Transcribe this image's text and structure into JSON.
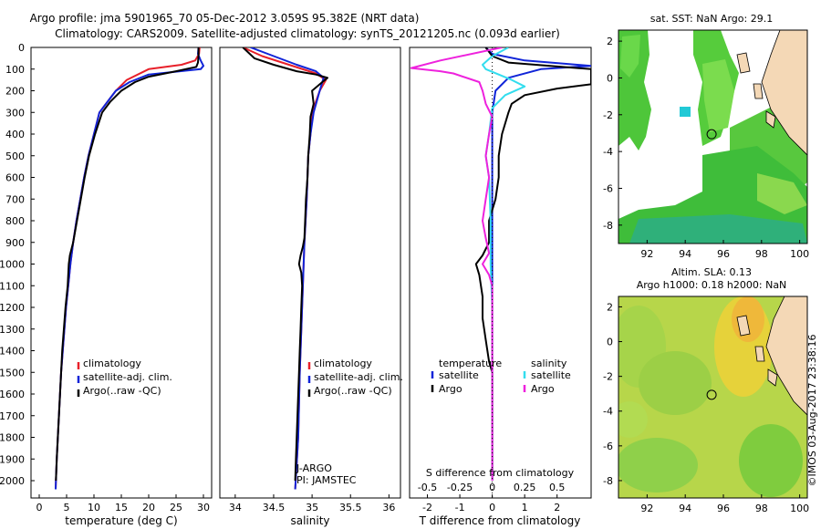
{
  "header": {
    "line1": "Argo profile: jma 5901965_70 05-Dec-2012 3.059S 95.382E (NRT data)",
    "line2": "Climatology: CARS2009. Satellite-adjusted climatology: synTS_20121205.nc (0.093d earlier)"
  },
  "colors": {
    "climatology": "#e8202a",
    "satellite": "#1024d8",
    "argo": "#000000",
    "sal_satellite": "#33ddee",
    "sal_argo": "#ee22dd"
  },
  "depth_axis": {
    "ticks": [
      0,
      100,
      200,
      300,
      400,
      500,
      600,
      700,
      800,
      900,
      1000,
      1100,
      1200,
      1300,
      1400,
      1500,
      1600,
      1700,
      1800,
      1900,
      2000
    ],
    "range": [
      0,
      2080
    ]
  },
  "chart_data": [
    {
      "type": "line",
      "name": "temperature",
      "xlabel": "temperature (deg C)",
      "xlim": [
        -1.5,
        31.5
      ],
      "xticks": [
        0,
        5,
        10,
        15,
        20,
        25,
        30
      ],
      "ylim": [
        2080,
        0
      ],
      "legend": [
        "climatology",
        "satellite-adj. clim.",
        "Argo(..raw -QC)"
      ],
      "series": [
        {
          "name": "climatology",
          "color_key": "climatology",
          "points": [
            [
              29.3,
              0
            ],
            [
              29.2,
              30
            ],
            [
              28.5,
              60
            ],
            [
              26,
              80
            ],
            [
              20,
              100
            ],
            [
              16,
              150
            ],
            [
              14,
              200
            ],
            [
              12.5,
              250
            ],
            [
              11,
              300
            ],
            [
              10,
              400
            ],
            [
              9,
              500
            ],
            [
              8.2,
              600
            ],
            [
              7.5,
              700
            ],
            [
              6.8,
              800
            ],
            [
              6.2,
              900
            ],
            [
              5.7,
              1000
            ],
            [
              5.3,
              1100
            ],
            [
              4.9,
              1200
            ],
            [
              4.6,
              1300
            ],
            [
              4.3,
              1400
            ],
            [
              4,
              1500
            ],
            [
              3.8,
              1600
            ],
            [
              3.6,
              1700
            ],
            [
              3.4,
              1800
            ],
            [
              3.2,
              1900
            ],
            [
              3.05,
              2000
            ],
            [
              3,
              2040
            ]
          ]
        },
        {
          "name": "satellite",
          "color_key": "satellite",
          "points": [
            [
              29.1,
              0
            ],
            [
              29,
              30
            ],
            [
              29.5,
              60
            ],
            [
              30,
              85
            ],
            [
              29.5,
              100
            ],
            [
              20,
              125
            ],
            [
              16.5,
              160
            ],
            [
              14,
              200
            ],
            [
              12.5,
              250
            ],
            [
              11,
              300
            ],
            [
              10,
              400
            ],
            [
              9,
              500
            ],
            [
              8.2,
              600
            ],
            [
              7.5,
              700
            ],
            [
              6.8,
              800
            ],
            [
              6.2,
              900
            ],
            [
              5.7,
              1000
            ],
            [
              5.3,
              1100
            ],
            [
              4.9,
              1200
            ],
            [
              4.6,
              1300
            ],
            [
              4.3,
              1400
            ],
            [
              4,
              1500
            ],
            [
              3.8,
              1600
            ],
            [
              3.6,
              1700
            ],
            [
              3.4,
              1800
            ],
            [
              3.2,
              1900
            ],
            [
              3.05,
              2000
            ],
            [
              3,
              2040
            ]
          ]
        },
        {
          "name": "argo",
          "color_key": "argo",
          "points": [
            [
              29.1,
              0
            ],
            [
              29.1,
              40
            ],
            [
              29,
              70
            ],
            [
              28.7,
              90
            ],
            [
              25,
              110
            ],
            [
              20,
              135
            ],
            [
              17.5,
              160
            ],
            [
              15,
              200
            ],
            [
              13,
              250
            ],
            [
              11.5,
              300
            ],
            [
              10.2,
              400
            ],
            [
              9.1,
              500
            ],
            [
              8.3,
              600
            ],
            [
              7.6,
              700
            ],
            [
              6.9,
              800
            ],
            [
              6.2,
              900
            ],
            [
              5.6,
              960
            ],
            [
              5.4,
              1000
            ],
            [
              5.2,
              1100
            ],
            [
              4.8,
              1200
            ],
            [
              4.5,
              1300
            ],
            [
              4.2,
              1400
            ],
            [
              4,
              1500
            ],
            [
              3.8,
              1600
            ],
            [
              3.6,
              1700
            ],
            [
              3.4,
              1800
            ],
            [
              3.2,
              1900
            ],
            [
              3.05,
              2000
            ]
          ]
        }
      ]
    },
    {
      "type": "line",
      "name": "salinity",
      "xlabel": "salinity",
      "xlim": [
        33.8,
        36.15
      ],
      "xticks": [
        34,
        34.5,
        35,
        35.5,
        36
      ],
      "ylim": [
        2080,
        0
      ],
      "legend": [
        "climatology",
        "satellite-adj. clim.",
        "Argo(..raw -QC)"
      ],
      "annotation": [
        "J-ARGO",
        "PI: JAMSTEC"
      ],
      "series": [
        {
          "name": "climatology",
          "color_key": "climatology",
          "points": [
            [
              34.1,
              0
            ],
            [
              34.35,
              40
            ],
            [
              34.7,
              80
            ],
            [
              35.05,
              120
            ],
            [
              35.18,
              150
            ],
            [
              35.1,
              200
            ],
            [
              35.0,
              300
            ],
            [
              34.98,
              400
            ],
            [
              34.95,
              500
            ],
            [
              34.93,
              700
            ],
            [
              34.9,
              900
            ],
            [
              34.88,
              1100
            ],
            [
              34.86,
              1300
            ],
            [
              34.84,
              1500
            ],
            [
              34.82,
              1800
            ],
            [
              34.78,
              2040
            ]
          ]
        },
        {
          "name": "satellite",
          "color_key": "satellite",
          "points": [
            [
              34.2,
              0
            ],
            [
              34.5,
              40
            ],
            [
              34.8,
              80
            ],
            [
              35.05,
              110
            ],
            [
              35.15,
              140
            ],
            [
              35.1,
              200
            ],
            [
              35.02,
              300
            ],
            [
              34.98,
              400
            ],
            [
              34.95,
              500
            ],
            [
              34.93,
              700
            ],
            [
              34.9,
              900
            ],
            [
              34.88,
              1100
            ],
            [
              34.86,
              1300
            ],
            [
              34.84,
              1500
            ],
            [
              34.82,
              1800
            ],
            [
              34.78,
              2040
            ]
          ]
        },
        {
          "name": "argo",
          "color_key": "argo",
          "points": [
            [
              34.1,
              0
            ],
            [
              34.25,
              50
            ],
            [
              34.5,
              80
            ],
            [
              34.8,
              110
            ],
            [
              35.05,
              125
            ],
            [
              35.2,
              140
            ],
            [
              35.1,
              170
            ],
            [
              35.0,
              200
            ],
            [
              35.02,
              260
            ],
            [
              34.98,
              320
            ],
            [
              34.97,
              400
            ],
            [
              34.95,
              500
            ],
            [
              34.94,
              600
            ],
            [
              34.92,
              700
            ],
            [
              34.91,
              800
            ],
            [
              34.9,
              880
            ],
            [
              34.88,
              920
            ],
            [
              34.85,
              960
            ],
            [
              34.83,
              1000
            ],
            [
              34.86,
              1040
            ],
            [
              34.87,
              1100
            ],
            [
              34.86,
              1200
            ],
            [
              34.85,
              1300
            ],
            [
              34.84,
              1400
            ],
            [
              34.83,
              1500
            ],
            [
              34.81,
              1700
            ],
            [
              34.79,
              1900
            ],
            [
              34.78,
              2000
            ]
          ]
        }
      ]
    },
    {
      "type": "line",
      "name": "difference from climatology",
      "xlabel": "T difference from climatology",
      "xlabel_top": "S difference from climatology",
      "xlim": [
        -2.55,
        3.05
      ],
      "xticks": [
        -2,
        -1,
        0,
        1,
        2
      ],
      "s_ticks": [
        {
          "label": "-0.5",
          "at": -2
        },
        {
          "label": "-0.25",
          "at": -1
        },
        {
          "label": "0",
          "at": 0
        },
        {
          "label": "0.25",
          "at": 1
        },
        {
          "label": "0.5",
          "at": 2
        }
      ],
      "ylim": [
        2080,
        0
      ],
      "legend_left": {
        "title": "temperature",
        "items": [
          "satellite",
          "Argo"
        ]
      },
      "legend_right": {
        "title": "salinity",
        "items": [
          "satellite",
          "Argo"
        ]
      },
      "series": [
        {
          "name": "T satellite",
          "color_key": "satellite",
          "points": [
            [
              -0.2,
              0
            ],
            [
              0,
              30
            ],
            [
              1,
              60
            ],
            [
              3.05,
              85
            ],
            [
              1.5,
              100
            ],
            [
              0.5,
              140
            ],
            [
              0.1,
              200
            ],
            [
              0,
              300
            ],
            [
              0,
              600
            ],
            [
              0,
              2000
            ]
          ]
        },
        {
          "name": "T Argo",
          "color_key": "argo",
          "points": [
            [
              -0.2,
              0
            ],
            [
              0,
              40
            ],
            [
              0.5,
              70
            ],
            [
              3.05,
              100
            ],
            [
              3.05,
              170
            ],
            [
              2,
              190
            ],
            [
              1,
              220
            ],
            [
              0.6,
              260
            ],
            [
              0.5,
              300
            ],
            [
              0.3,
              400
            ],
            [
              0.2,
              500
            ],
            [
              0.2,
              600
            ],
            [
              0.1,
              700
            ],
            [
              -0.1,
              800
            ],
            [
              -0.1,
              900
            ],
            [
              -0.3,
              960
            ],
            [
              -0.5,
              1000
            ],
            [
              -0.4,
              1050
            ],
            [
              -0.3,
              1150
            ],
            [
              -0.3,
              1250
            ],
            [
              -0.2,
              1350
            ],
            [
              -0.1,
              1450
            ],
            [
              0,
              1500
            ],
            [
              0,
              2000
            ]
          ]
        },
        {
          "name": "S satellite",
          "color_key": "sal_satellite",
          "points": [
            [
              0.5,
              0
            ],
            [
              0,
              40
            ],
            [
              -0.3,
              80
            ],
            [
              -0.2,
              100
            ],
            [
              0.6,
              150
            ],
            [
              1.0,
              180
            ],
            [
              0.4,
              220
            ],
            [
              0,
              280
            ],
            [
              -0.1,
              400
            ],
            [
              -0.2,
              500
            ],
            [
              -0.1,
              600
            ],
            [
              -0.05,
              800
            ],
            [
              -0.05,
              1000
            ],
            [
              0,
              1200
            ],
            [
              0,
              1500
            ],
            [
              0,
              2000
            ]
          ]
        },
        {
          "name": "S Argo",
          "color_key": "sal_argo",
          "points": [
            [
              0.3,
              0
            ],
            [
              -1.6,
              60
            ],
            [
              -2.5,
              95
            ],
            [
              -1.6,
              110
            ],
            [
              -1.2,
              120
            ],
            [
              -0.4,
              160
            ],
            [
              -0.3,
              200
            ],
            [
              -0.2,
              260
            ],
            [
              0,
              320
            ],
            [
              -0.1,
              400
            ],
            [
              -0.2,
              500
            ],
            [
              -0.1,
              600
            ],
            [
              -0.2,
              700
            ],
            [
              -0.3,
              800
            ],
            [
              -0.2,
              880
            ],
            [
              -0.1,
              950
            ],
            [
              -0.3,
              1000
            ],
            [
              -0.1,
              1050
            ],
            [
              0,
              1100
            ],
            [
              0,
              1300
            ],
            [
              0,
              1500
            ],
            [
              0,
              2000
            ]
          ]
        }
      ]
    },
    {
      "type": "heatmap",
      "name": "SST map",
      "title": "sat. SST: NaN Argo: 29.1",
      "xticks": [
        92,
        94,
        96,
        98,
        100
      ],
      "yticks": [
        2,
        0,
        -2,
        -4,
        -6,
        -8
      ],
      "xlim": [
        90.5,
        100.4
      ],
      "ylim": [
        -9.0,
        2.6
      ],
      "marker": {
        "lon": 95.382,
        "lat": -3.059
      }
    },
    {
      "type": "heatmap",
      "name": "SLA map",
      "title_line1": "Altim. SLA: 0.13",
      "title_line2": "Argo h1000: 0.18 h2000: NaN",
      "xticks": [
        92,
        94,
        96,
        98,
        100
      ],
      "yticks": [
        2,
        0,
        -2,
        -4,
        -6,
        -8
      ],
      "xlim": [
        90.5,
        100.4
      ],
      "ylim": [
        -9.0,
        2.6
      ],
      "marker": {
        "lon": 95.382,
        "lat": -3.059
      }
    }
  ],
  "credit": "©IMOS 03-Aug-2017 23:38:16"
}
